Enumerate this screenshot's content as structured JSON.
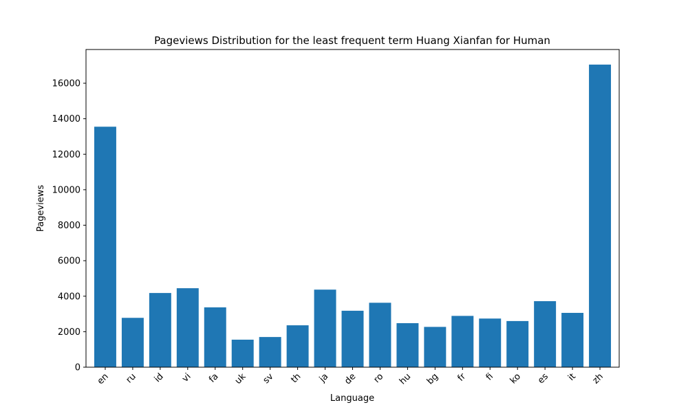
{
  "chart_data": {
    "type": "bar",
    "title": "Pageviews Distribution for the least frequent term Huang Xianfan for Human",
    "xlabel": "Language",
    "ylabel": "Pageviews",
    "categories": [
      "en",
      "ru",
      "id",
      "vi",
      "fa",
      "uk",
      "sv",
      "th",
      "ja",
      "de",
      "ro",
      "hu",
      "bg",
      "fr",
      "fi",
      "ko",
      "es",
      "it",
      "zh"
    ],
    "values": [
      13550,
      2780,
      4180,
      4450,
      3370,
      1550,
      1700,
      2360,
      4370,
      3180,
      3630,
      2480,
      2270,
      2890,
      2740,
      2600,
      3720,
      3060,
      17050
    ],
    "ylim": [
      0,
      17900
    ],
    "yticks": [
      0,
      2000,
      4000,
      6000,
      8000,
      10000,
      12000,
      14000,
      16000
    ],
    "grid": false,
    "bar_color": "#1f77b4"
  }
}
